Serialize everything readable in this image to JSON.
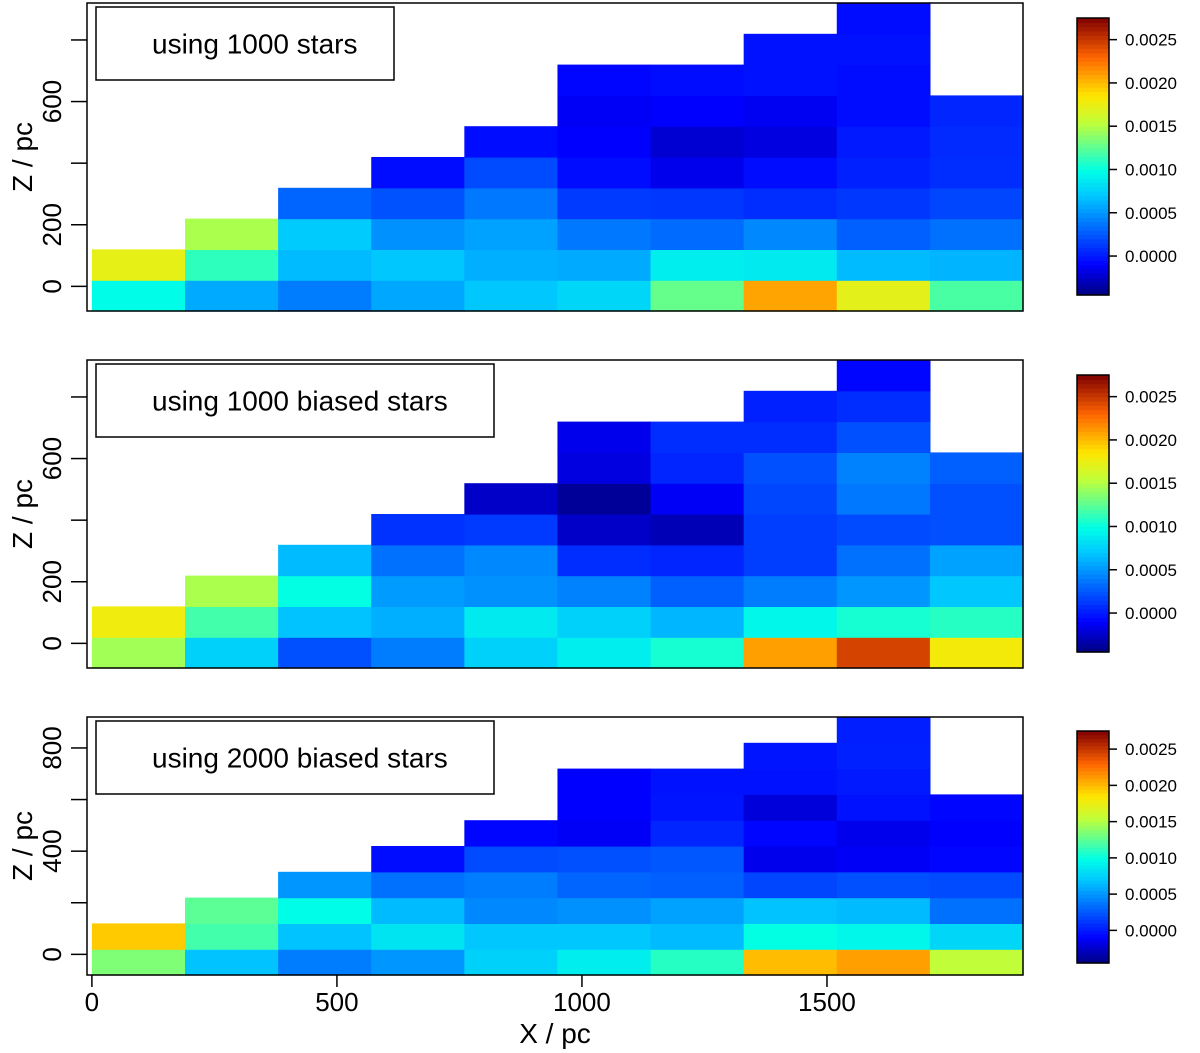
{
  "chart_data": [
    {
      "type": "heatmap",
      "annotation": "using 1000 stars",
      "ylabel": "Z / pc",
      "yticks": [
        0,
        200,
        400,
        600,
        800
      ],
      "ytick_labels": [
        "0",
        "200",
        "",
        "600",
        ""
      ],
      "x_edges": [
        0,
        190,
        380,
        570,
        760,
        950,
        1140,
        1330,
        1520,
        1710,
        1900
      ],
      "z_edges": [
        -80,
        20,
        120,
        220,
        320,
        420,
        520,
        620,
        720,
        820,
        920
      ],
      "xlim": [
        -10,
        1900
      ],
      "ylim": [
        -80,
        920
      ],
      "colorbar": {
        "range": [
          -0.00045,
          0.00275
        ],
        "ticks": [
          0.0,
          0.0005,
          0.001,
          0.0015,
          0.002,
          0.0025
        ],
        "tick_labels": [
          "0.0000",
          "0.0005",
          "0.0010",
          "0.0015",
          "0.0020",
          "0.0025"
        ]
      },
      "values": [
        [
          0.00098,
          0.00058,
          0.0004,
          0.00057,
          0.0007,
          0.00078,
          0.00128,
          0.00208,
          0.00172,
          0.0012
        ],
        [
          0.00173,
          0.00112,
          0.00065,
          0.0007,
          0.0006,
          0.00058,
          0.0009,
          0.00088,
          0.00065,
          0.00062
        ],
        [
          null,
          0.00148,
          0.00072,
          0.00048,
          0.00055,
          0.00038,
          0.00033,
          0.00045,
          0.00028,
          0.00035
        ],
        [
          null,
          null,
          0.0003,
          0.00023,
          0.00038,
          0.00013,
          0.00012,
          8e-05,
          0.00012,
          0.00018
        ],
        [
          null,
          null,
          null,
          -5e-05,
          0.0002,
          -5e-05,
          -0.00015,
          -5e-05,
          3e-05,
          8e-05
        ],
        [
          null,
          null,
          null,
          null,
          -5e-05,
          -0.0001,
          -0.00022,
          -0.00018,
          0.0,
          7e-05
        ],
        [
          null,
          null,
          null,
          null,
          null,
          -0.00012,
          -0.0001,
          -0.00013,
          -5e-05,
          5e-05
        ],
        [
          null,
          null,
          null,
          null,
          null,
          -8e-05,
          -5e-05,
          -3e-05,
          -5e-05,
          null
        ],
        [
          null,
          null,
          null,
          null,
          null,
          null,
          null,
          -3e-05,
          -3e-05,
          null
        ],
        [
          null,
          null,
          null,
          null,
          null,
          null,
          null,
          null,
          -5e-05,
          null
        ]
      ]
    },
    {
      "type": "heatmap",
      "annotation": "using 1000 biased stars",
      "ylabel": "Z / pc",
      "yticks": [
        0,
        200,
        400,
        600,
        800
      ],
      "ytick_labels": [
        "0",
        "200",
        "",
        "600",
        ""
      ],
      "x_edges": [
        0,
        190,
        380,
        570,
        760,
        950,
        1140,
        1330,
        1520,
        1710,
        1900
      ],
      "z_edges": [
        -80,
        20,
        120,
        220,
        320,
        420,
        520,
        620,
        720,
        820,
        920
      ],
      "xlim": [
        -10,
        1900
      ],
      "ylim": [
        -80,
        920
      ],
      "colorbar": {
        "range": [
          -0.00045,
          0.00275
        ],
        "ticks": [
          0.0,
          0.0005,
          0.001,
          0.0015,
          0.002,
          0.0025
        ],
        "tick_labels": [
          "0.0000",
          "0.0005",
          "0.0010",
          "0.0015",
          "0.0020",
          "0.0025"
        ]
      },
      "values": [
        [
          0.00145,
          0.00075,
          0.00022,
          0.0004,
          0.00075,
          0.0009,
          0.00105,
          0.0021,
          0.00245,
          0.0018
        ],
        [
          0.00178,
          0.00118,
          0.00068,
          0.0006,
          0.00088,
          0.00075,
          0.00063,
          0.00095,
          0.00105,
          0.0011
        ],
        [
          null,
          0.00148,
          0.001,
          0.00052,
          0.00048,
          0.00042,
          0.00028,
          0.0004,
          0.0005,
          0.0007
        ],
        [
          null,
          null,
          0.00065,
          0.00035,
          0.00045,
          8e-05,
          5e-05,
          0.00015,
          0.00035,
          0.00055
        ],
        [
          null,
          null,
          null,
          0.0001,
          0.00013,
          -0.00025,
          -0.0003,
          0.00015,
          0.0002,
          0.00022
        ],
        [
          null,
          null,
          null,
          null,
          -0.00025,
          -0.00038,
          -0.00012,
          0.00018,
          0.00038,
          0.00022
        ],
        [
          null,
          null,
          null,
          null,
          null,
          -0.00018,
          5e-05,
          0.00022,
          0.00042,
          0.00028
        ],
        [
          null,
          null,
          null,
          null,
          null,
          -0.00015,
          8e-05,
          8e-05,
          0.00022,
          null
        ],
        [
          null,
          null,
          null,
          null,
          null,
          null,
          null,
          3e-05,
          8e-05,
          null
        ],
        [
          null,
          null,
          null,
          null,
          null,
          null,
          null,
          null,
          -8e-05,
          null
        ]
      ]
    },
    {
      "type": "heatmap",
      "annotation": "using 2000 biased stars",
      "ylabel": "Z / pc",
      "xlabel": "X / pc",
      "xticks": [
        0,
        500,
        1000,
        1500
      ],
      "yticks": [
        0,
        200,
        400,
        600,
        800
      ],
      "ytick_labels": [
        "0",
        "",
        "400",
        "",
        "800"
      ],
      "x_edges": [
        0,
        190,
        380,
        570,
        760,
        950,
        1140,
        1330,
        1520,
        1710,
        1900
      ],
      "z_edges": [
        -80,
        20,
        120,
        220,
        320,
        420,
        520,
        620,
        720,
        820,
        920
      ],
      "xlim": [
        -10,
        1900
      ],
      "ylim": [
        -80,
        920
      ],
      "colorbar": {
        "range": [
          -0.00045,
          0.00275
        ],
        "ticks": [
          0.0,
          0.0005,
          0.001,
          0.0015,
          0.002,
          0.0025
        ],
        "tick_labels": [
          "0.0000",
          "0.0005",
          "0.0010",
          "0.0015",
          "0.0020",
          "0.0025"
        ]
      },
      "values": [
        [
          0.00135,
          0.00068,
          0.0004,
          0.0005,
          0.00075,
          0.0009,
          0.0011,
          0.002,
          0.0021,
          0.00155
        ],
        [
          0.00195,
          0.00118,
          0.00068,
          0.00085,
          0.0007,
          0.0007,
          0.00065,
          0.001,
          0.00095,
          0.00078
        ],
        [
          null,
          0.00125,
          0.00098,
          0.00065,
          0.00045,
          0.00048,
          0.00055,
          0.00068,
          0.00065,
          0.00035
        ],
        [
          null,
          null,
          0.0005,
          0.00035,
          0.0004,
          0.0003,
          0.00028,
          0.00018,
          0.00022,
          0.0002
        ],
        [
          null,
          null,
          null,
          -5e-05,
          0.0002,
          0.00022,
          0.00025,
          -0.00015,
          -0.00012,
          -8e-05
        ],
        [
          null,
          null,
          null,
          null,
          -8e-05,
          -0.00012,
          5e-05,
          -8e-05,
          -0.00015,
          -0.0001
        ],
        [
          null,
          null,
          null,
          null,
          null,
          -0.0001,
          -2e-05,
          -0.0002,
          -3e-05,
          -8e-05
        ],
        [
          null,
          null,
          null,
          null,
          null,
          -0.0001,
          -3e-05,
          -3e-05,
          0.0,
          null
        ],
        [
          null,
          null,
          null,
          null,
          null,
          null,
          null,
          -2e-05,
          3e-05,
          null
        ],
        [
          null,
          null,
          null,
          null,
          null,
          null,
          null,
          null,
          2e-05,
          null
        ]
      ]
    }
  ]
}
